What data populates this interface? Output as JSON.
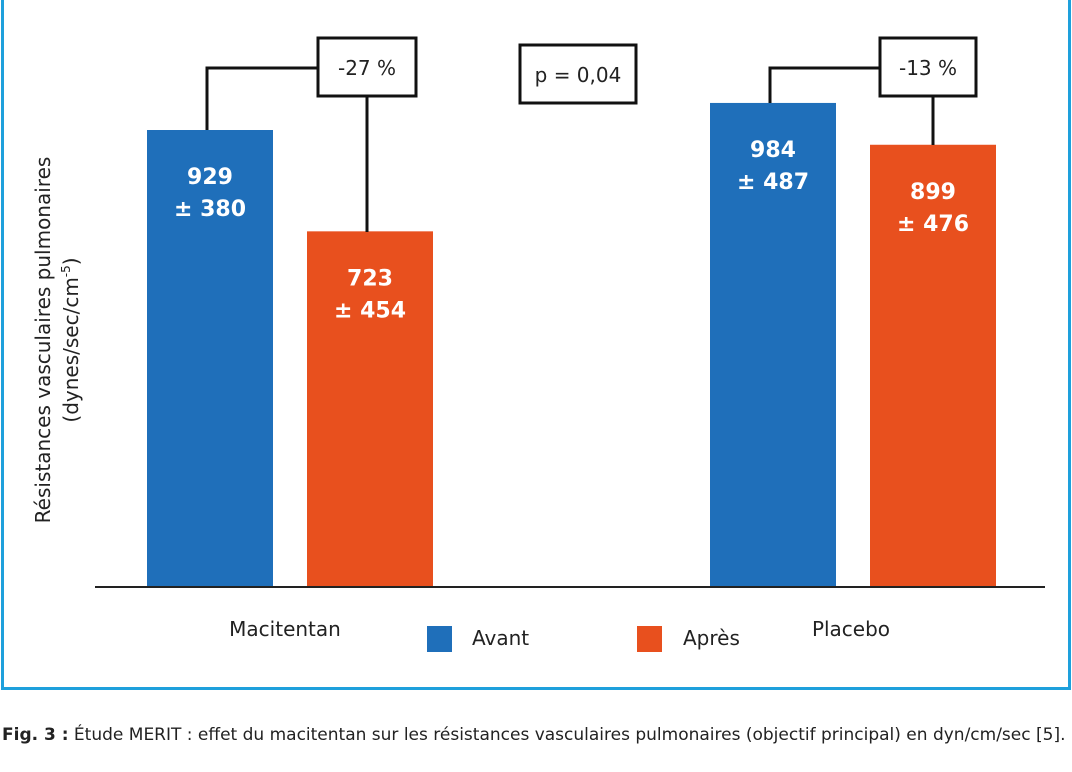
{
  "chart_data": {
    "type": "bar",
    "ylabel_line1": "Résistances vasculaires pulmonaires",
    "ylabel_line2": "(dynes/sec/cm",
    "ylabel_sup": "-5",
    "ylabel_close": ")",
    "categories": [
      "Macitentan",
      "Placebo"
    ],
    "series": [
      {
        "name": "Avant",
        "color": "#1f6fba",
        "values": [
          929,
          984
        ],
        "sd": [
          380,
          487
        ]
      },
      {
        "name": "Après",
        "color": "#e8501e",
        "values": [
          723,
          899
        ],
        "sd": [
          454,
          476
        ]
      }
    ],
    "value_labels": [
      [
        "929",
        "± 380"
      ],
      [
        "723",
        "± 454"
      ],
      [
        "984",
        "± 487"
      ],
      [
        "899",
        "± 476"
      ]
    ],
    "annotations": {
      "macitentan_change": "-27 %",
      "placebo_change": "-13 %",
      "p_value": "p = 0,04"
    },
    "ylim": [
      0,
      1000
    ],
    "grid": false,
    "legend_position": "bottom-center"
  },
  "caption": {
    "label": "Fig. 3 :",
    "text": " Étude MERIT : effet du macitentan sur les résistances vasculaires pulmonaires (objectif principal) en dyn/cm/sec [5]."
  }
}
